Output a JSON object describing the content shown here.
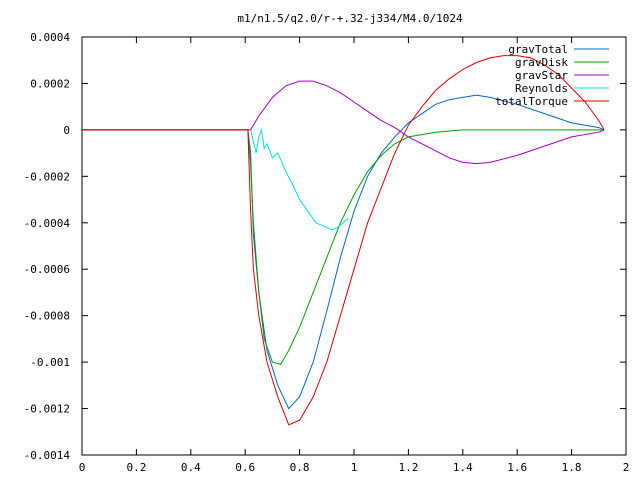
{
  "chart_data": {
    "type": "line",
    "title": "m1/n1.5/q2.0/r-+.32-j334/M4.0/1024",
    "xlabel": "",
    "ylabel": "",
    "xlim": [
      0,
      2
    ],
    "ylim": [
      -0.0014,
      0.0004
    ],
    "x_ticks": [
      0,
      0.2,
      0.4,
      0.6,
      0.8,
      1,
      1.2,
      1.4,
      1.6,
      1.8,
      2
    ],
    "x_tick_labels": [
      "0",
      "0.2",
      "0.4",
      "0.6",
      "0.8",
      "1",
      "1.2",
      "1.4",
      "1.6",
      "1.8",
      "2"
    ],
    "y_ticks": [
      0.0004,
      0.0002,
      0,
      -0.0002,
      -0.0004,
      -0.0006,
      -0.0008,
      -0.001,
      -0.0012,
      -0.0014
    ],
    "y_tick_labels": [
      "0.0004",
      "0.0002",
      "0",
      "-0.0002",
      "-0.0004",
      "-0.0006",
      "-0.0008",
      "-0.001",
      "-0.0012",
      "-0.0014"
    ],
    "grid": false,
    "legend_position": "top-right",
    "series": [
      {
        "name": "gravTotal",
        "color": "#0066cc",
        "points": [
          [
            0,
            0
          ],
          [
            0.61,
            0
          ],
          [
            0.62,
            -0.0001
          ],
          [
            0.63,
            -0.00045
          ],
          [
            0.65,
            -0.0007
          ],
          [
            0.68,
            -0.00095
          ],
          [
            0.72,
            -0.0011
          ],
          [
            0.76,
            -0.0012
          ],
          [
            0.8,
            -0.00115
          ],
          [
            0.85,
            -0.001
          ],
          [
            0.9,
            -0.00078
          ],
          [
            0.95,
            -0.00055
          ],
          [
            1.0,
            -0.00035
          ],
          [
            1.05,
            -0.0002
          ],
          [
            1.1,
            -0.0001
          ],
          [
            1.15,
            -3e-05
          ],
          [
            1.2,
            3e-05
          ],
          [
            1.25,
            7e-05
          ],
          [
            1.3,
            0.00011
          ],
          [
            1.35,
            0.00013
          ],
          [
            1.4,
            0.00014
          ],
          [
            1.45,
            0.00015
          ],
          [
            1.5,
            0.00014
          ],
          [
            1.6,
            0.00011
          ],
          [
            1.7,
            7e-05
          ],
          [
            1.8,
            3e-05
          ],
          [
            1.9,
            1e-05
          ],
          [
            1.92,
            0
          ]
        ]
      },
      {
        "name": "gravDisk",
        "color": "#00a000",
        "points": [
          [
            0,
            0
          ],
          [
            0.61,
            0
          ],
          [
            0.62,
            -0.00015
          ],
          [
            0.63,
            -0.0004
          ],
          [
            0.65,
            -0.0007
          ],
          [
            0.67,
            -0.0009
          ],
          [
            0.7,
            -0.001
          ],
          [
            0.73,
            -0.00101
          ],
          [
            0.76,
            -0.00095
          ],
          [
            0.8,
            -0.00085
          ],
          [
            0.85,
            -0.0007
          ],
          [
            0.9,
            -0.00055
          ],
          [
            0.95,
            -0.0004
          ],
          [
            1.0,
            -0.00028
          ],
          [
            1.05,
            -0.00018
          ],
          [
            1.1,
            -0.00011
          ],
          [
            1.15,
            -6e-05
          ],
          [
            1.2,
            -3e-05
          ],
          [
            1.3,
            -1e-05
          ],
          [
            1.4,
            0
          ],
          [
            1.6,
            0
          ],
          [
            1.8,
            0
          ],
          [
            1.92,
            0
          ]
        ]
      },
      {
        "name": "gravStar",
        "color": "#a000c0",
        "points": [
          [
            0,
            0
          ],
          [
            0.62,
            0
          ],
          [
            0.65,
            6e-05
          ],
          [
            0.7,
            0.00014
          ],
          [
            0.75,
            0.00019
          ],
          [
            0.8,
            0.00021
          ],
          [
            0.85,
            0.00021
          ],
          [
            0.9,
            0.00019
          ],
          [
            0.95,
            0.00016
          ],
          [
            1.0,
            0.00012
          ],
          [
            1.05,
            8e-05
          ],
          [
            1.1,
            4e-05
          ],
          [
            1.15,
            1e-05
          ],
          [
            1.2,
            -3e-05
          ],
          [
            1.25,
            -6e-05
          ],
          [
            1.3,
            -9e-05
          ],
          [
            1.35,
            -0.00012
          ],
          [
            1.4,
            -0.00014
          ],
          [
            1.45,
            -0.000145
          ],
          [
            1.5,
            -0.00014
          ],
          [
            1.6,
            -0.00011
          ],
          [
            1.7,
            -7e-05
          ],
          [
            1.8,
            -3e-05
          ],
          [
            1.9,
            -1e-05
          ],
          [
            1.92,
            0
          ]
        ]
      },
      {
        "name": "Reynolds",
        "color": "#00e0e0",
        "points": [
          [
            0.62,
            0
          ],
          [
            0.63,
            -5e-05
          ],
          [
            0.64,
            -0.0001
          ],
          [
            0.65,
            -3e-05
          ],
          [
            0.66,
            0
          ],
          [
            0.67,
            -8e-05
          ],
          [
            0.68,
            -6e-05
          ],
          [
            0.7,
            -0.00012
          ],
          [
            0.72,
            -0.0001
          ],
          [
            0.75,
            -0.00018
          ],
          [
            0.78,
            -0.00025
          ],
          [
            0.8,
            -0.0003
          ],
          [
            0.83,
            -0.00035
          ],
          [
            0.86,
            -0.0004
          ],
          [
            0.9,
            -0.00042
          ],
          [
            0.92,
            -0.00043
          ],
          [
            0.94,
            -0.00042
          ],
          [
            0.96,
            -0.0004
          ],
          [
            0.98,
            -0.00038
          ]
        ]
      },
      {
        "name": "totalTorque",
        "color": "#e00000",
        "points": [
          [
            0,
            0
          ],
          [
            0.61,
            0
          ],
          [
            0.62,
            -0.00035
          ],
          [
            0.63,
            -0.0006
          ],
          [
            0.65,
            -0.0008
          ],
          [
            0.68,
            -0.001
          ],
          [
            0.72,
            -0.00115
          ],
          [
            0.76,
            -0.00127
          ],
          [
            0.8,
            -0.00125
          ],
          [
            0.85,
            -0.00115
          ],
          [
            0.9,
            -0.001
          ],
          [
            0.95,
            -0.0008
          ],
          [
            1.0,
            -0.0006
          ],
          [
            1.05,
            -0.0004
          ],
          [
            1.1,
            -0.00025
          ],
          [
            1.15,
            -0.0001
          ],
          [
            1.2,
            2e-05
          ],
          [
            1.25,
            0.0001
          ],
          [
            1.3,
            0.00017
          ],
          [
            1.35,
            0.00022
          ],
          [
            1.4,
            0.00026
          ],
          [
            1.45,
            0.00029
          ],
          [
            1.5,
            0.00031
          ],
          [
            1.55,
            0.00032
          ],
          [
            1.6,
            0.00032
          ],
          [
            1.65,
            0.00031
          ],
          [
            1.7,
            0.00028
          ],
          [
            1.75,
            0.00024
          ],
          [
            1.8,
            0.00018
          ],
          [
            1.85,
            0.00012
          ],
          [
            1.9,
            4e-05
          ],
          [
            1.92,
            0
          ]
        ]
      }
    ]
  }
}
